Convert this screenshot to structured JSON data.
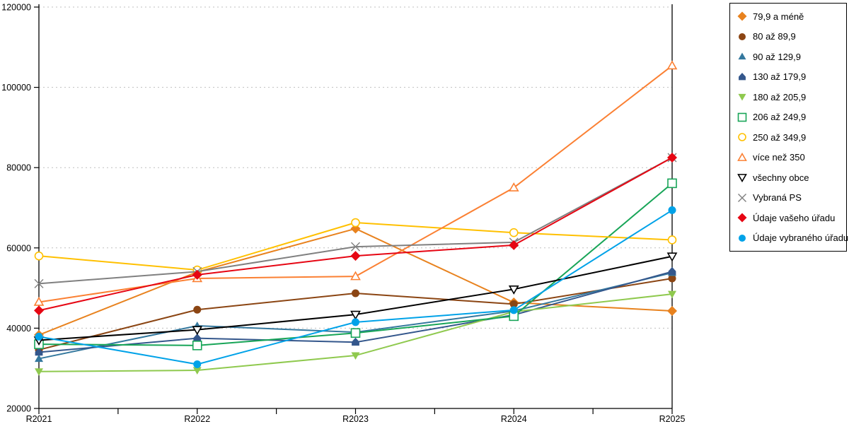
{
  "chart_data": {
    "type": "line",
    "categories": [
      "R2021",
      "R2022",
      "R2023",
      "R2024",
      "R2025"
    ],
    "series": [
      {
        "name": "79,9 a méně",
        "marker": "diamond",
        "style": "filled",
        "color": "#E8821E",
        "values": [
          38300,
          54000,
          64800,
          46400,
          44300
        ]
      },
      {
        "name": "80 až 89,9",
        "marker": "circle",
        "style": "filled",
        "color": "#8B4513",
        "values": [
          34600,
          44600,
          48700,
          46000,
          52400
        ]
      },
      {
        "name": "90 až 129,9",
        "marker": "triangle-up",
        "style": "filled",
        "color": "#34789E",
        "values": [
          32400,
          40600,
          39000,
          44300,
          53800
        ]
      },
      {
        "name": "130 až 179,9",
        "marker": "pentagon",
        "style": "filled",
        "color": "#34578C",
        "values": [
          34000,
          37500,
          36500,
          43300,
          54100
        ]
      },
      {
        "name": "180 až 205,9",
        "marker": "triangle-down",
        "style": "filled",
        "color": "#8FC94E",
        "values": [
          29200,
          29500,
          33200,
          44100,
          48500
        ]
      },
      {
        "name": "206 až 249,9",
        "marker": "square",
        "style": "open",
        "color": "#18A558",
        "values": [
          36000,
          35700,
          38800,
          43000,
          76100
        ]
      },
      {
        "name": "250 až 349,9",
        "marker": "circle",
        "style": "open",
        "color": "#FFC000",
        "values": [
          58000,
          54500,
          66300,
          63800,
          62000
        ]
      },
      {
        "name": "více než 350",
        "marker": "triangle-up",
        "style": "open",
        "color": "#FB8033",
        "values": [
          46500,
          52400,
          52900,
          75000,
          105400
        ]
      },
      {
        "name": "všechny obce",
        "marker": "triangle-down",
        "style": "open",
        "color": "#000000",
        "values": [
          37000,
          39600,
          43400,
          49700,
          57900
        ]
      },
      {
        "name": "Vybraná PS",
        "marker": "x",
        "style": "open",
        "color": "#808080",
        "values": [
          51100,
          54100,
          60300,
          61400,
          82500
        ]
      },
      {
        "name": "Údaje vašeho úřadu",
        "marker": "diamond",
        "style": "filled",
        "color": "#E60613",
        "values": [
          44400,
          53300,
          58000,
          60700,
          82500
        ]
      },
      {
        "name": "Údaje vybraného úřadu",
        "marker": "circle",
        "style": "filled",
        "color": "#00A2E8",
        "values": [
          37900,
          31000,
          41500,
          44500,
          69400
        ]
      }
    ],
    "title": "",
    "xlabel": "",
    "ylabel": "",
    "ylim": [
      20000,
      120000
    ],
    "yticks": [
      20000,
      40000,
      60000,
      80000,
      100000,
      120000
    ],
    "grid": "dashed-horizontal",
    "legend_position": "right"
  },
  "colors": {
    "axis": "#000000",
    "gridline": "#bfbfbf",
    "background": "#ffffff",
    "legend_border": "#000000"
  }
}
